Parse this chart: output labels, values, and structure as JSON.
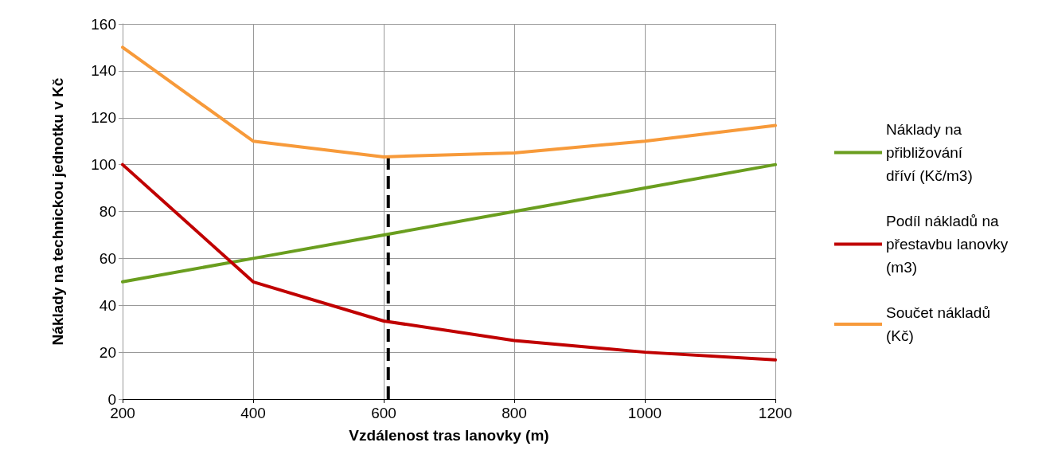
{
  "chart_data": {
    "type": "line",
    "xlabel": "Vzdálenost tras lanovky (m)",
    "ylabel": "Náklady na technickou jednotku v Kč",
    "x": [
      200,
      400,
      600,
      800,
      1000,
      1200
    ],
    "series": [
      {
        "name": "Náklady na přibližování dříví (Kč/m3)",
        "color": "#6a9e1f",
        "values": [
          50,
          60,
          70,
          80,
          90,
          100
        ]
      },
      {
        "name": "Podíl nákladů na přestavbu lanovky (m3)",
        "color": "#c00000",
        "values": [
          100,
          50,
          33.3,
          25,
          20,
          16.7
        ]
      },
      {
        "name": "Součet nákladů (Kč)",
        "color": "#f79a3a",
        "values": [
          150,
          110,
          103.3,
          105,
          110,
          116.7
        ]
      }
    ],
    "xlim": [
      200,
      1200
    ],
    "xticks": [
      200,
      400,
      600,
      800,
      1000,
      1200
    ],
    "ylim": [
      0,
      160
    ],
    "yticks": [
      0,
      20,
      40,
      60,
      80,
      100,
      120,
      140,
      160
    ],
    "ref_lines": [
      {
        "axis": "x",
        "value": 607,
        "color": "#000000",
        "line_style": "dashed"
      }
    ],
    "grid": true,
    "legend": "right",
    "marker": "none",
    "line_style": "solid"
  }
}
